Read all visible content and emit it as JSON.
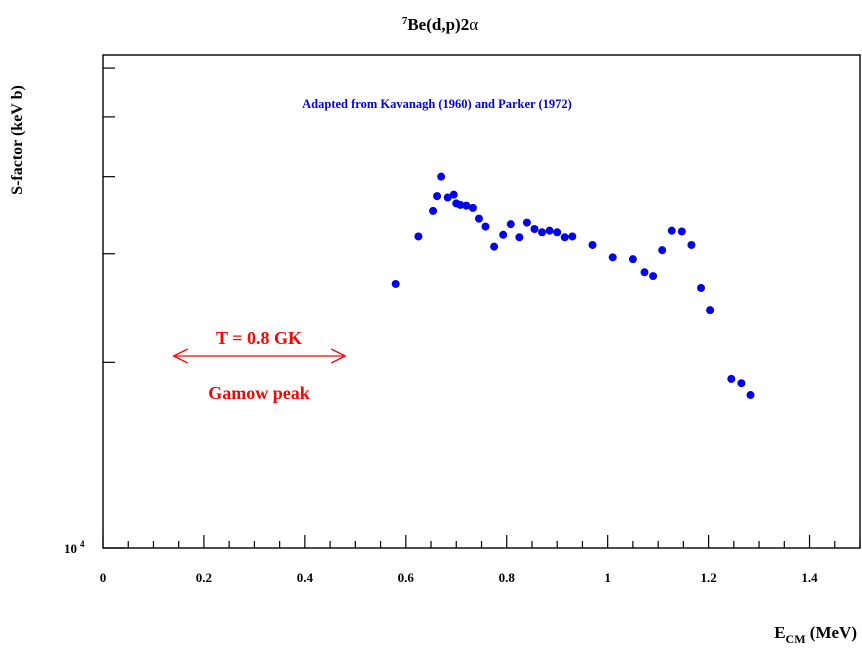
{
  "chart_data": {
    "type": "scatter",
    "title": {
      "sup": "7",
      "main": "Be(d,p)2",
      "alpha": "α"
    },
    "ylabel": "S-factor (keV b)",
    "xlabel": {
      "main": "E",
      "sub": "CM",
      "unit": " (MeV)"
    },
    "ytick_label": {
      "base": "10",
      "exp": "4"
    },
    "xlim": [
      0,
      1.5
    ],
    "ylim": [
      10000,
      63000
    ],
    "yscale": "log",
    "grid": false,
    "legend": "none",
    "x_ticks": [
      0,
      0.2,
      0.4,
      0.6,
      0.8,
      1,
      1.2,
      1.4
    ],
    "x_tick_labels": [
      "0",
      "0.2",
      "0.4",
      "0.6",
      "0.8",
      "1",
      "1.2",
      "1.4"
    ],
    "annotation": "Adapted from Kavanagh (1960) and Parker (1972)",
    "series": [
      {
        "color": "#0000ee",
        "points": [
          [
            0.58,
            26800
          ],
          [
            0.625,
            32000
          ],
          [
            0.654,
            35200
          ],
          [
            0.662,
            37200
          ],
          [
            0.67,
            40000
          ],
          [
            0.683,
            37000
          ],
          [
            0.695,
            37400
          ],
          [
            0.7,
            36200
          ],
          [
            0.708,
            36000
          ],
          [
            0.72,
            35900
          ],
          [
            0.733,
            35600
          ],
          [
            0.745,
            34200
          ],
          [
            0.758,
            33200
          ],
          [
            0.775,
            30800
          ],
          [
            0.793,
            32200
          ],
          [
            0.808,
            33500
          ],
          [
            0.825,
            31900
          ],
          [
            0.84,
            33700
          ],
          [
            0.855,
            32900
          ],
          [
            0.87,
            32500
          ],
          [
            0.885,
            32700
          ],
          [
            0.9,
            32500
          ],
          [
            0.915,
            31900
          ],
          [
            0.93,
            32000
          ],
          [
            0.97,
            31000
          ],
          [
            1.01,
            29600
          ],
          [
            1.05,
            29400
          ],
          [
            1.073,
            28000
          ],
          [
            1.09,
            27600
          ],
          [
            1.108,
            30400
          ],
          [
            1.127,
            32700
          ],
          [
            1.147,
            32600
          ],
          [
            1.166,
            31000
          ],
          [
            1.185,
            26400
          ],
          [
            1.203,
            24300
          ],
          [
            1.245,
            18800
          ],
          [
            1.265,
            18500
          ],
          [
            1.283,
            17700
          ]
        ]
      }
    ],
    "gamow_window": {
      "x_range": [
        0.14,
        0.48
      ],
      "color": "#ff0000"
    }
  },
  "labels": {
    "temperature": "T = 0.8 GK",
    "gamow": "Gamow peak"
  }
}
